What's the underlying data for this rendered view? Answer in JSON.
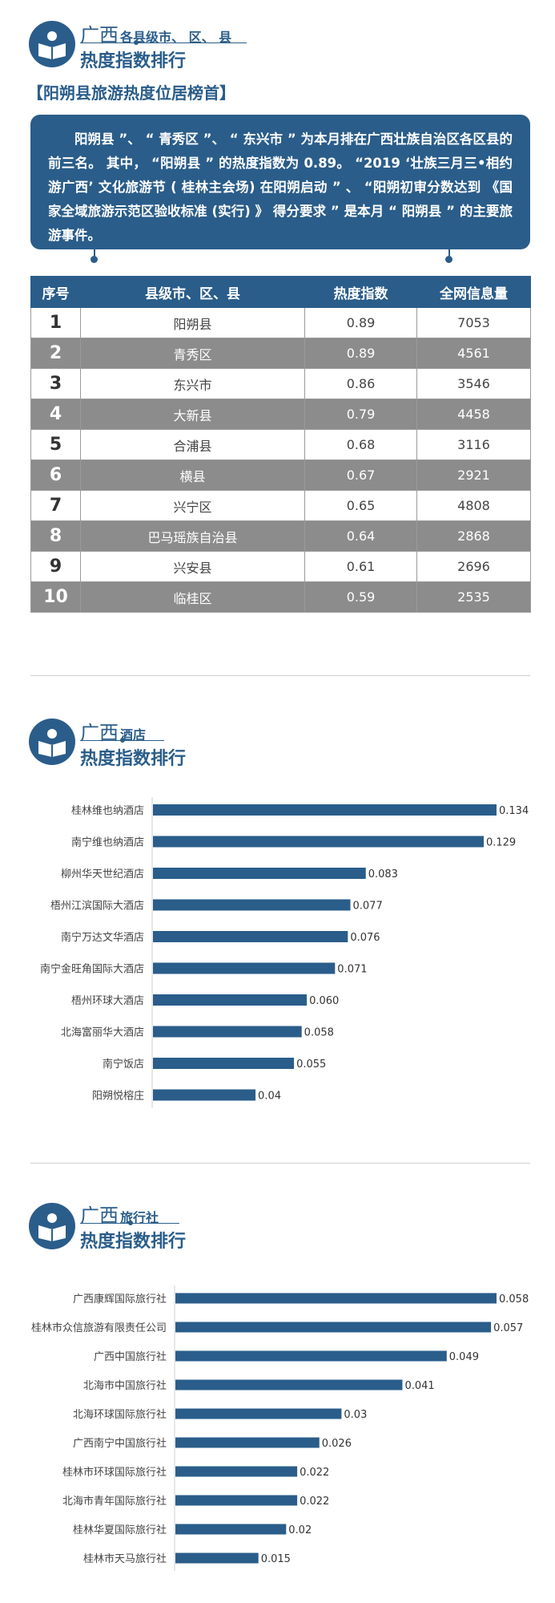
{
  "section1": {
    "header_big": "广西",
    "header_small": "各县级市、 区、 县",
    "header_main": "热度指数排行",
    "subtitle": "【阳朔县旅游热度位居榜首】",
    "callout": "阳朔县 ”、 “ 青秀区 ”、 “ 东兴市 ” 为本月排在广西壮族自治区各区县的前三名。 其中， “阳朔县 ” 的热度指数为 0.89。 “2019 ‘壮族三月三•相约游广西’ 文化旅游节 ( 桂林主会场) 在阳朔启动 ” 、 “阳朔初审分数达到 《国家全域旅游示范区验收标准 (实行) 》 得分要求 ” 是本月 “ 阳朔县 ” 的主要旅游事件。",
    "table": {
      "headers": [
        "序号",
        "县级市、区、县",
        "热度指数",
        "全网信息量"
      ],
      "rows": [
        {
          "idx": "1",
          "name": "阳朔县",
          "heat": "0.89",
          "info": "7053"
        },
        {
          "idx": "2",
          "name": "青秀区",
          "heat": "0.89",
          "info": "4561"
        },
        {
          "idx": "3",
          "name": "东兴市",
          "heat": "0.86",
          "info": "3546"
        },
        {
          "idx": "4",
          "name": "大新县",
          "heat": "0.79",
          "info": "4458"
        },
        {
          "idx": "5",
          "name": "合浦县",
          "heat": "0.68",
          "info": "3116"
        },
        {
          "idx": "6",
          "name": "横县",
          "heat": "0.67",
          "info": "2921"
        },
        {
          "idx": "7",
          "name": "兴宁区",
          "heat": "0.65",
          "info": "4808"
        },
        {
          "idx": "8",
          "name": "巴马瑶族自治县",
          "heat": "0.64",
          "info": "2868"
        },
        {
          "idx": "9",
          "name": "兴安县",
          "heat": "0.61",
          "info": "2696"
        },
        {
          "idx": "10",
          "name": "临桂区",
          "heat": "0.59",
          "info": "2535"
        }
      ]
    }
  },
  "section2": {
    "header_big": "广西",
    "header_small": "酒店",
    "header_main": "热度指数排行"
  },
  "section3": {
    "header_big": "广西",
    "header_small": "旅行社",
    "header_main": "热度指数排行"
  },
  "colors": {
    "accent": "#2a5d8a",
    "row_gray": "#8c8c8c"
  },
  "chart_data": [
    {
      "type": "bar",
      "orientation": "horizontal",
      "categories": [
        "桂林维也纳酒店",
        "南宁维也纳酒店",
        "柳州华天世纪酒店",
        "梧州江滨国际大酒店",
        "南宁万达文华酒店",
        "南宁金旺角国际大酒店",
        "梧州环球大酒店",
        "北海富丽华大酒店",
        "南宁饭店",
        "阳朔悦榕庄"
      ],
      "values": [
        0.134,
        0.129,
        0.083,
        0.077,
        0.076,
        0.071,
        0.06,
        0.058,
        0.055,
        0.04
      ],
      "value_labels": [
        "0.134",
        "0.129",
        "0.083",
        "0.077",
        "0.076",
        "0.071",
        "0.060",
        "0.058",
        "0.055",
        "0.04"
      ],
      "xlim": [
        0,
        0.134
      ],
      "grid": false
    },
    {
      "type": "bar",
      "orientation": "horizontal",
      "categories": [
        "广西康辉国际旅行社",
        "桂林市众信旅游有限责任公司",
        "广西中国旅行社",
        "北海市中国旅行社",
        "北海环球国际旅行社",
        "广西南宁中国旅行社",
        "桂林市环球国际旅行社",
        "北海市青年国际旅行社",
        "桂林华夏国际旅行社",
        "桂林市天马旅行社"
      ],
      "values": [
        0.058,
        0.057,
        0.049,
        0.041,
        0.03,
        0.026,
        0.022,
        0.022,
        0.02,
        0.015
      ],
      "value_labels": [
        "0.058",
        "0.057",
        "0.049",
        "0.041",
        "0.03",
        "0.026",
        "0.022",
        "0.022",
        "0.02",
        "0.015"
      ],
      "xlim": [
        0,
        0.058
      ],
      "grid": false
    }
  ]
}
